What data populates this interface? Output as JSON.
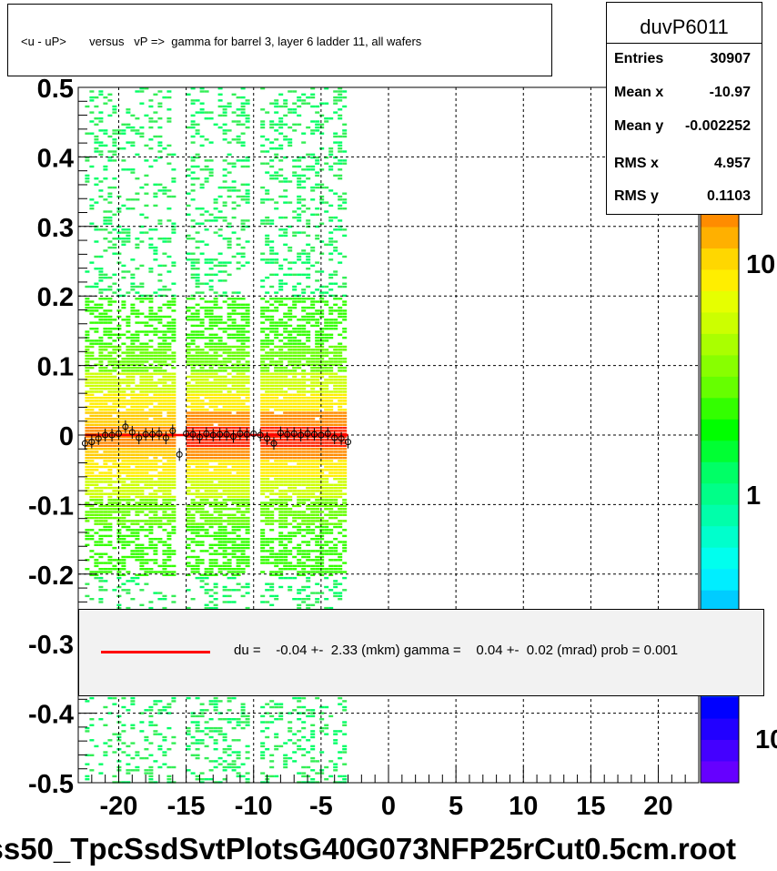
{
  "title": "<u - uP>       versus   vP =>  gamma for barrel 3, layer 6 ladder 11, all wafers",
  "stats": {
    "name": "duvP6011",
    "rows": [
      {
        "label": "Entries",
        "value": "30907"
      },
      {
        "label": "Mean x",
        "value": "-10.97"
      },
      {
        "label": "Mean y",
        "value": "-0.002252"
      },
      {
        "label": "RMS x",
        "value": "4.957"
      },
      {
        "label": "RMS y",
        "value": "0.1103"
      }
    ]
  },
  "legend": {
    "line_color": "#ff0000",
    "text": "du =    -0.04 +-  2.33 (mkm) gamma =    0.04 +-  0.02 (mrad) prob = 0.001"
  },
  "footer": "ss50_TpcSsdSvtPlotsG40G073NFP25rCut0.5cm.root",
  "palette": {
    "labels": [
      "10",
      "1",
      "10"
    ],
    "colors": [
      "#ff8c00",
      "#ffb000",
      "#ffd700",
      "#ffee00",
      "#e6ff00",
      "#ccff00",
      "#aaff00",
      "#88ff00",
      "#66ff00",
      "#33ff00",
      "#00ff00",
      "#00ff33",
      "#00ff66",
      "#00ff88",
      "#00ffaa",
      "#00ffcc",
      "#00ffee",
      "#00eeff",
      "#00ccff",
      "#00aaff",
      "#0088ff",
      "#0066ff",
      "#0044ff",
      "#0000ff",
      "#2200ff",
      "#4400ff",
      "#6600ff"
    ]
  },
  "chart_data": {
    "type": "heatmap",
    "title": "<u - uP>       versus   vP =>  gamma for barrel 3, layer 6 ladder 11, all wafers",
    "xlim": [
      -23,
      23
    ],
    "ylim": [
      -0.5,
      0.5
    ],
    "xticks": [
      -20,
      -15,
      -10,
      -5,
      0,
      5,
      10,
      15,
      20
    ],
    "yticks": [
      0.5,
      0.4,
      0.3,
      0.2,
      0.1,
      0,
      -0.1,
      -0.2,
      -0.3,
      -0.4,
      -0.5
    ],
    "grid": true,
    "bands": [
      {
        "x_range": [
          -22.5,
          -16.0
        ],
        "density": "medium"
      },
      {
        "x_range": [
          -15.0,
          -10.5
        ],
        "density": "high"
      },
      {
        "x_range": [
          -9.5,
          -3.2
        ],
        "density": "high"
      }
    ],
    "fit_line": {
      "x": [
        -22.5,
        -3.0
      ],
      "y": [
        0.0,
        0.0
      ],
      "color": "#ff0000"
    },
    "profile_points": {
      "x": [
        -22.5,
        -22,
        -21.5,
        -21,
        -20.5,
        -20,
        -19.5,
        -19,
        -18.5,
        -18,
        -17.5,
        -17,
        -16.5,
        -16,
        -15.5,
        -15,
        -14.5,
        -14,
        -13.5,
        -13,
        -12.5,
        -12,
        -11.5,
        -11,
        -10.5,
        -10,
        -9.5,
        -9,
        -8.5,
        -8,
        -7.5,
        -7,
        -6.5,
        -6,
        -5.5,
        -5,
        -4.5,
        -4,
        -3.5,
        -3
      ],
      "y": [
        -0.012,
        -0.01,
        -0.005,
        0,
        0,
        0.002,
        0.012,
        0.004,
        -0.004,
        0.001,
        0.001,
        0.002,
        -0.004,
        0.006,
        -0.028,
        0.002,
        0.001,
        -0.003,
        0.002,
        0,
        0.001,
        0.001,
        -0.002,
        0.002,
        0.001,
        0.002,
        0,
        -0.005,
        -0.012,
        0.003,
        0.001,
        0.002,
        0,
        0.002,
        0.001,
        0,
        0.002,
        -0.004,
        -0.005,
        -0.01
      ]
    }
  }
}
